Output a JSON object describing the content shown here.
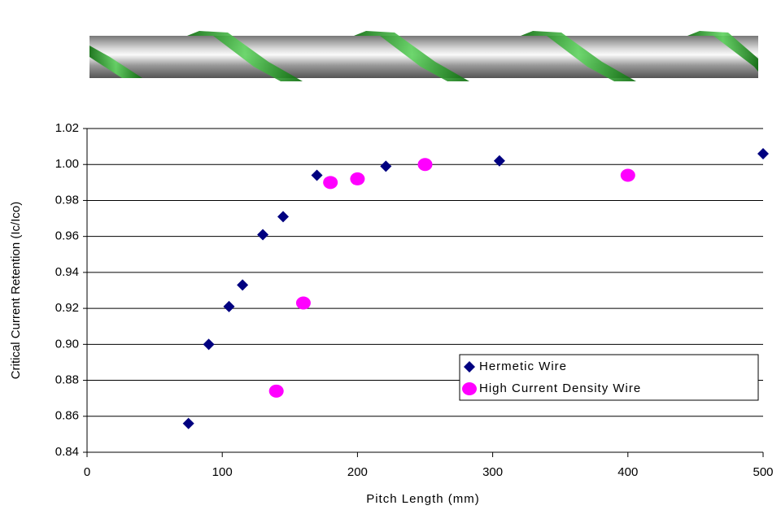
{
  "chart_data": {
    "type": "scatter",
    "x_label": "Pitch Length (mm)",
    "y_label": "Critical Current Retention (Ic/Ico)",
    "xlim": [
      0,
      500
    ],
    "xticks": [
      0,
      100,
      200,
      300,
      400,
      500
    ],
    "ylim": [
      0.84,
      1.02
    ],
    "yticks": [
      0.84,
      0.86,
      0.88,
      {
        "value": 0.9,
        "label": "0.90"
      },
      0.92,
      0.94,
      0.96,
      0.98,
      {
        "value": 1,
        "label": "1.00"
      },
      1.02
    ],
    "grid": true,
    "legend": "lower right",
    "series": [
      {
        "name": "Hermetic Wire",
        "color": "#000080",
        "marker": "diamond",
        "x": [
          75,
          90,
          105,
          115,
          130,
          145,
          170,
          221,
          305,
          500
        ],
        "values": [
          0.856,
          0.9,
          0.921,
          0.933,
          0.961,
          0.971,
          0.994,
          0.999,
          1.002,
          1.006
        ]
      },
      {
        "name": "High Current Density Wire",
        "color": "#ff00ff",
        "marker": "ellipse",
        "x": [
          140,
          160,
          180,
          200,
          250,
          400
        ],
        "values": [
          0.874,
          0.923,
          0.99,
          0.992,
          1.0,
          0.994
        ]
      }
    ]
  }
}
